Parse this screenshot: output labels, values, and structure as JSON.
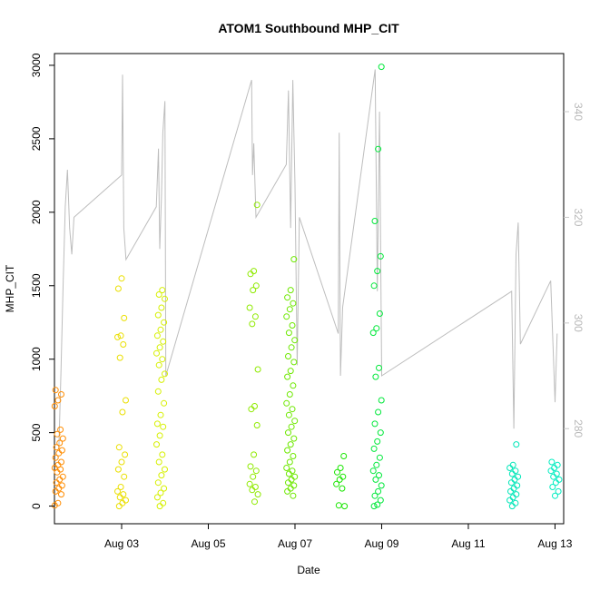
{
  "chart_data": {
    "type": "scatter",
    "title": "ATOM1 Southbound MHP_CIT",
    "xlabel": "Date",
    "ylabel": "MHP_CIT",
    "x_ticks": [
      "Aug 03",
      "Aug 05",
      "Aug 07",
      "Aug 09",
      "Aug 11",
      "Aug 13"
    ],
    "x_range_days": [
      1.45,
      13.2
    ],
    "x_tick_days": [
      3,
      5,
      7,
      9,
      11,
      13
    ],
    "ylim": [
      -120,
      3080
    ],
    "y_ticks": [
      0,
      500,
      1000,
      1500,
      2000,
      2500,
      3000
    ],
    "y2_range": [
      262,
      351
    ],
    "y2_ticks": [
      280,
      300,
      320,
      340
    ],
    "grid": false,
    "legend": "none",
    "colors": {
      "line": "#bdbdbd",
      "right_axis": "#c8c8c8"
    },
    "points_series": [
      {
        "color": "#ff8c00",
        "day": 1.55,
        "values": [
          5,
          20,
          80,
          100,
          120,
          140,
          160,
          180,
          200,
          230,
          250,
          260,
          280,
          300,
          330,
          360,
          380,
          400,
          430,
          460,
          490,
          520,
          680,
          720,
          760,
          790
        ]
      },
      {
        "color": "#eadf00",
        "day": 3.0,
        "values": [
          0,
          20,
          40,
          60,
          80,
          100,
          130,
          200,
          250,
          300,
          350,
          400,
          640,
          720,
          1010,
          1100,
          1150,
          1160,
          1280,
          1480,
          1550
        ]
      },
      {
        "color": "#d6f000",
        "day": 3.9,
        "values": [
          0,
          20,
          60,
          90,
          120,
          160,
          210,
          250,
          300,
          350,
          420,
          480,
          540,
          560,
          620,
          700,
          780,
          860,
          900,
          960,
          1000,
          1040,
          1080,
          1120,
          1160,
          1200,
          1250,
          1300,
          1350,
          1410,
          1440,
          1470
        ]
      },
      {
        "color": "#8fea00",
        "day": 6.05,
        "values": [
          30,
          80,
          110,
          130,
          150,
          200,
          240,
          270,
          350,
          550,
          660,
          680,
          930,
          1240,
          1290,
          1350,
          1470,
          1500,
          1580,
          1600,
          2050
        ]
      },
      {
        "color": "#6ee800",
        "day": 6.9,
        "values": [
          70,
          100,
          120,
          140,
          160,
          180,
          200,
          220,
          240,
          260,
          300,
          340,
          380,
          420,
          460,
          500,
          540,
          580,
          620,
          660,
          700,
          760,
          820,
          880,
          920,
          980,
          1020,
          1080,
          1130,
          1180,
          1230,
          1290,
          1340,
          1380,
          1420,
          1470,
          1680
        ]
      },
      {
        "color": "#19e600",
        "day": 8.05,
        "values": [
          0,
          5,
          120,
          150,
          180,
          200,
          230,
          260,
          340
        ]
      },
      {
        "color": "#00e83a",
        "day": 8.9,
        "values": [
          0,
          10,
          40,
          70,
          100,
          140,
          180,
          210,
          240,
          280,
          330,
          390,
          440,
          500,
          560,
          640,
          720,
          880,
          940,
          1180,
          1210,
          1310,
          1500,
          1600,
          1700,
          1940,
          2430,
          2990
        ]
      },
      {
        "color": "#00e6b8",
        "day": 12.05,
        "values": [
          0,
          20,
          40,
          60,
          80,
          100,
          120,
          140,
          160,
          180,
          200,
          220,
          240,
          260,
          280,
          420
        ]
      },
      {
        "color": "#00ecc0",
        "day": 13.0,
        "values": [
          70,
          100,
          130,
          160,
          180,
          200,
          220,
          240,
          260,
          280,
          300
        ]
      }
    ],
    "line_series": {
      "name": "",
      "axis": "right",
      "points": [
        [
          1.55,
          276
        ],
        [
          1.6,
          291
        ],
        [
          1.65,
          307
        ],
        [
          1.7,
          322
        ],
        [
          1.75,
          329
        ],
        [
          1.8,
          318
        ],
        [
          1.85,
          313
        ],
        [
          1.9,
          320
        ],
        [
          3.0,
          328
        ],
        [
          3.02,
          347
        ],
        [
          3.05,
          318
        ],
        [
          3.1,
          312
        ],
        [
          3.8,
          322
        ],
        [
          3.85,
          333
        ],
        [
          3.88,
          314
        ],
        [
          3.92,
          324
        ],
        [
          3.95,
          336
        ],
        [
          4.0,
          342
        ],
        [
          4.02,
          290
        ],
        [
          6.0,
          346
        ],
        [
          6.02,
          328
        ],
        [
          6.05,
          334
        ],
        [
          6.1,
          320
        ],
        [
          6.8,
          330
        ],
        [
          6.85,
          344
        ],
        [
          6.9,
          318
        ],
        [
          6.95,
          346
        ],
        [
          7.0,
          326
        ],
        [
          7.05,
          292
        ],
        [
          7.1,
          320
        ],
        [
          8.0,
          298
        ],
        [
          8.02,
          336
        ],
        [
          8.05,
          290
        ],
        [
          8.1,
          303
        ],
        [
          8.85,
          348
        ],
        [
          8.9,
          306
        ],
        [
          8.95,
          340
        ],
        [
          9.0,
          290
        ],
        [
          12.0,
          306
        ],
        [
          12.05,
          280
        ],
        [
          12.1,
          313
        ],
        [
          12.15,
          319
        ],
        [
          12.2,
          296
        ],
        [
          12.9,
          308
        ],
        [
          13.0,
          285
        ],
        [
          13.05,
          298
        ]
      ]
    }
  }
}
